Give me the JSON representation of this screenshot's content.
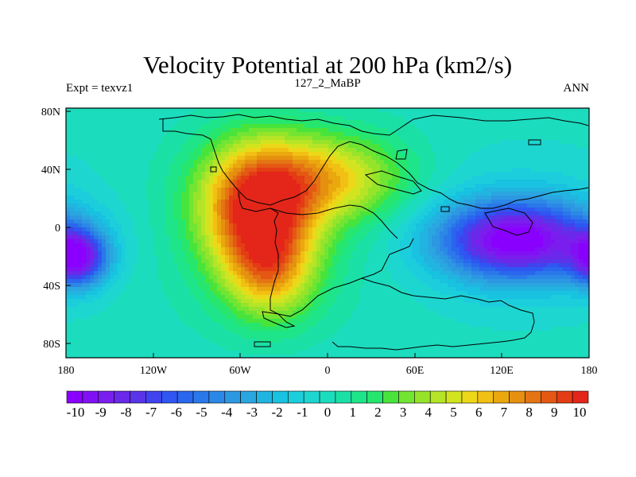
{
  "title": "Velocity Potential at 200 hPa (km2/s)",
  "left_string": "Expt = texvz1",
  "center_string": "127_2_MaBP",
  "right_string": "ANN",
  "axes": {
    "lon_ticks": [
      "180",
      "120W",
      "60W",
      "0",
      "60E",
      "120E",
      "180"
    ],
    "lat_ticks": [
      "80N",
      "40N",
      "0",
      "40S",
      "80S"
    ],
    "lon_range": [
      -180,
      180
    ],
    "lat_range": [
      -90,
      90
    ]
  },
  "colorbar": {
    "labels": [
      "-10",
      "-9",
      "-8",
      "-7",
      "-6",
      "-5",
      "-4",
      "-3",
      "-2",
      "-1",
      "0",
      "1",
      "2",
      "3",
      "4",
      "5",
      "6",
      "7",
      "8",
      "9",
      "10"
    ],
    "min": -10.5,
    "max": 10.5,
    "colors": [
      "#8a00ff",
      "#8110f5",
      "#7a1eee",
      "#6a28ea",
      "#5a34e8",
      "#4043ee",
      "#2f56f2",
      "#2a66ee",
      "#2a78ea",
      "#2c88e6",
      "#2d98e2",
      "#2aa6e0",
      "#22b4e0",
      "#18c2e0",
      "#1ccedc",
      "#1ed6d0",
      "#1cdcbe",
      "#1be0a6",
      "#1ee48a",
      "#26e66e",
      "#48e43c",
      "#72e432",
      "#96e42a",
      "#b6e426",
      "#d2e420",
      "#ecd818",
      "#f2c014",
      "#eaa80e",
      "#e69010",
      "#e47414",
      "#e45814",
      "#e43c14",
      "#e4261a"
    ]
  },
  "field_centers": [
    {
      "kind": "high",
      "lon": -48,
      "lat": 20,
      "value": 9.8,
      "sigma_lon": 28,
      "sigma_lat": 32
    },
    {
      "kind": "high",
      "lon": -40,
      "lat": -28,
      "value": 5.5,
      "sigma_lon": 22,
      "sigma_lat": 25
    },
    {
      "kind": "high",
      "lon": 5,
      "lat": 40,
      "value": 5.2,
      "sigma_lon": 35,
      "sigma_lat": 22
    },
    {
      "kind": "low",
      "lon": 130,
      "lat": -5,
      "value": -10.2,
      "sigma_lon": 38,
      "sigma_lat": 20
    },
    {
      "kind": "low",
      "lon": -172,
      "lat": -18,
      "value": -8.5,
      "sigma_lon": 14,
      "sigma_lat": 14
    }
  ]
}
